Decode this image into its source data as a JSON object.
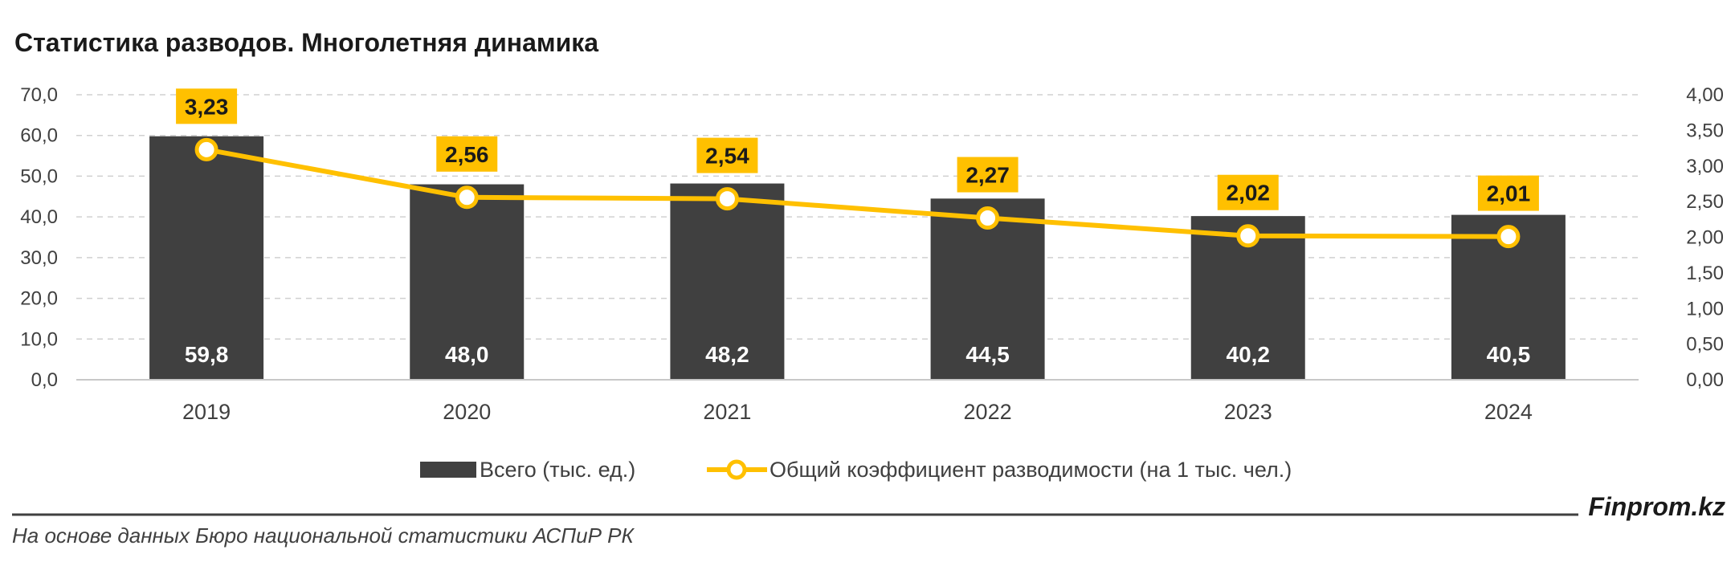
{
  "chart_data": {
    "type": "bar",
    "title": "Статистика разводов. Многолетняя динамика",
    "categories": [
      "2019",
      "2020",
      "2021",
      "2022",
      "2023",
      "2024"
    ],
    "series": [
      {
        "name": "Всего (тыс. ед.)",
        "type": "bar",
        "axis": "left",
        "values": [
          59.8,
          48.0,
          48.2,
          44.5,
          40.2,
          40.5
        ],
        "labels": [
          "59,8",
          "48,0",
          "48,2",
          "44,5",
          "40,2",
          "40,5"
        ],
        "color": "#404040"
      },
      {
        "name": "Общий коэффициент разводимости (на 1 тыс. чел.)",
        "type": "line",
        "axis": "right",
        "values": [
          3.23,
          2.56,
          2.54,
          2.27,
          2.02,
          2.01
        ],
        "labels": [
          "3,23",
          "2,56",
          "2,54",
          "2,27",
          "2,02",
          "2,01"
        ],
        "color": "#FFC000"
      }
    ],
    "y_left": {
      "ylim": [
        0,
        70
      ],
      "ticks": [
        0,
        10,
        20,
        30,
        40,
        50,
        60,
        70
      ],
      "tick_labels": [
        "0,0",
        "10,0",
        "20,0",
        "30,0",
        "40,0",
        "50,0",
        "60,0",
        "70,0"
      ]
    },
    "y_right": {
      "ylim": [
        0,
        4
      ],
      "ticks": [
        0,
        0.5,
        1,
        1.5,
        2,
        2.5,
        3,
        3.5,
        4
      ],
      "tick_labels": [
        "0,00",
        "0,50",
        "1,00",
        "1,50",
        "2,00",
        "2,50",
        "3,00",
        "3,50",
        "4,00"
      ]
    },
    "grid": true,
    "legend_position": "bottom"
  },
  "footer": {
    "source": "На основе данных Бюро национальной статистики АСПиР РК",
    "brand": "Finprom.kz"
  }
}
